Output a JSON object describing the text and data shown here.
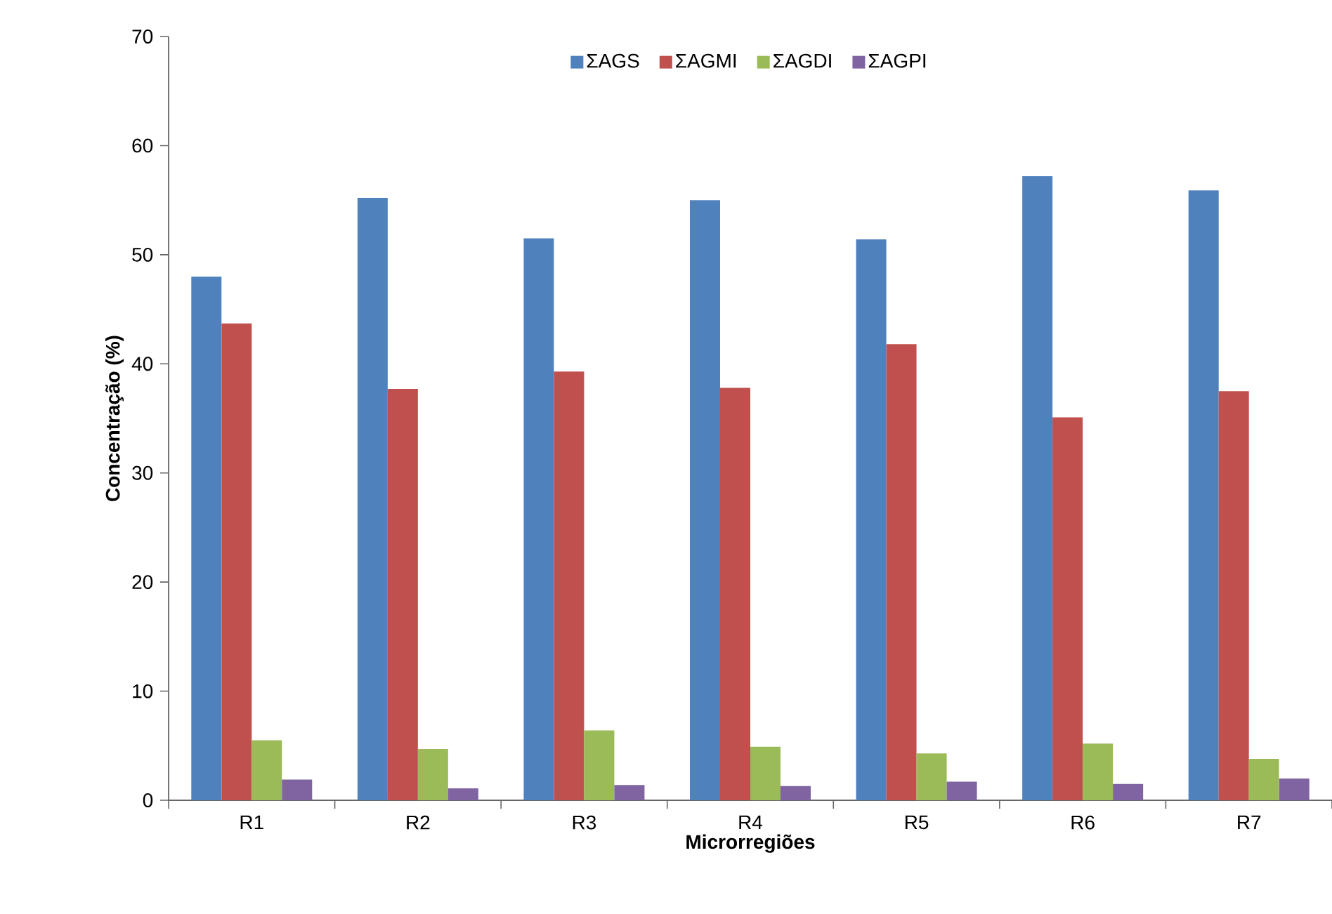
{
  "chart_data": {
    "type": "bar",
    "xlabel": "Microrregiões",
    "ylabel": "Concentração (%)",
    "categories": [
      "R1",
      "R2",
      "R3",
      "R4",
      "R5",
      "R6",
      "R7"
    ],
    "series": [
      {
        "name": "ΣAGS",
        "color": "#4f81bd",
        "values": [
          48.0,
          55.2,
          51.5,
          55.0,
          51.4,
          57.2,
          55.9
        ]
      },
      {
        "name": "ΣAGMI",
        "color": "#c0504d",
        "values": [
          43.7,
          37.7,
          39.3,
          37.8,
          41.8,
          35.1,
          37.5
        ]
      },
      {
        "name": "ΣAGDI",
        "color": "#9bbb59",
        "values": [
          5.5,
          4.7,
          6.4,
          4.9,
          4.3,
          5.2,
          3.8
        ]
      },
      {
        "name": "ΣAGPI",
        "color": "#8064a2",
        "values": [
          1.9,
          1.1,
          1.4,
          1.3,
          1.7,
          1.5,
          2.0
        ]
      }
    ],
    "ylim": [
      0,
      70
    ],
    "yticks": [
      0,
      10,
      20,
      30,
      40,
      50,
      60,
      70
    ],
    "grid": false,
    "legend": "top"
  }
}
